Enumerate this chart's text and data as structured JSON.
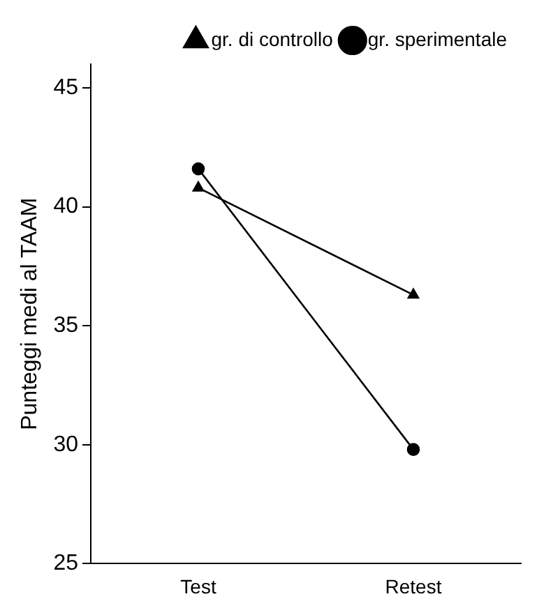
{
  "chart_data": {
    "type": "line",
    "ylabel": "Punteggi medi al TAAM",
    "categories": [
      "Test",
      "Retest"
    ],
    "series": [
      {
        "name": "gr. di controllo",
        "color": "#000000",
        "values": [
          40.8,
          36.3
        ],
        "marker": "triangle"
      },
      {
        "name": "gr. sperimentale",
        "color": "#000000",
        "values": [
          41.6,
          29.8
        ],
        "marker": "circle"
      }
    ],
    "ylim": [
      25,
      46
    ],
    "yticks": [
      25,
      30,
      35,
      40,
      45
    ],
    "grid": false,
    "legend": "top right",
    "line_style": "solid"
  }
}
